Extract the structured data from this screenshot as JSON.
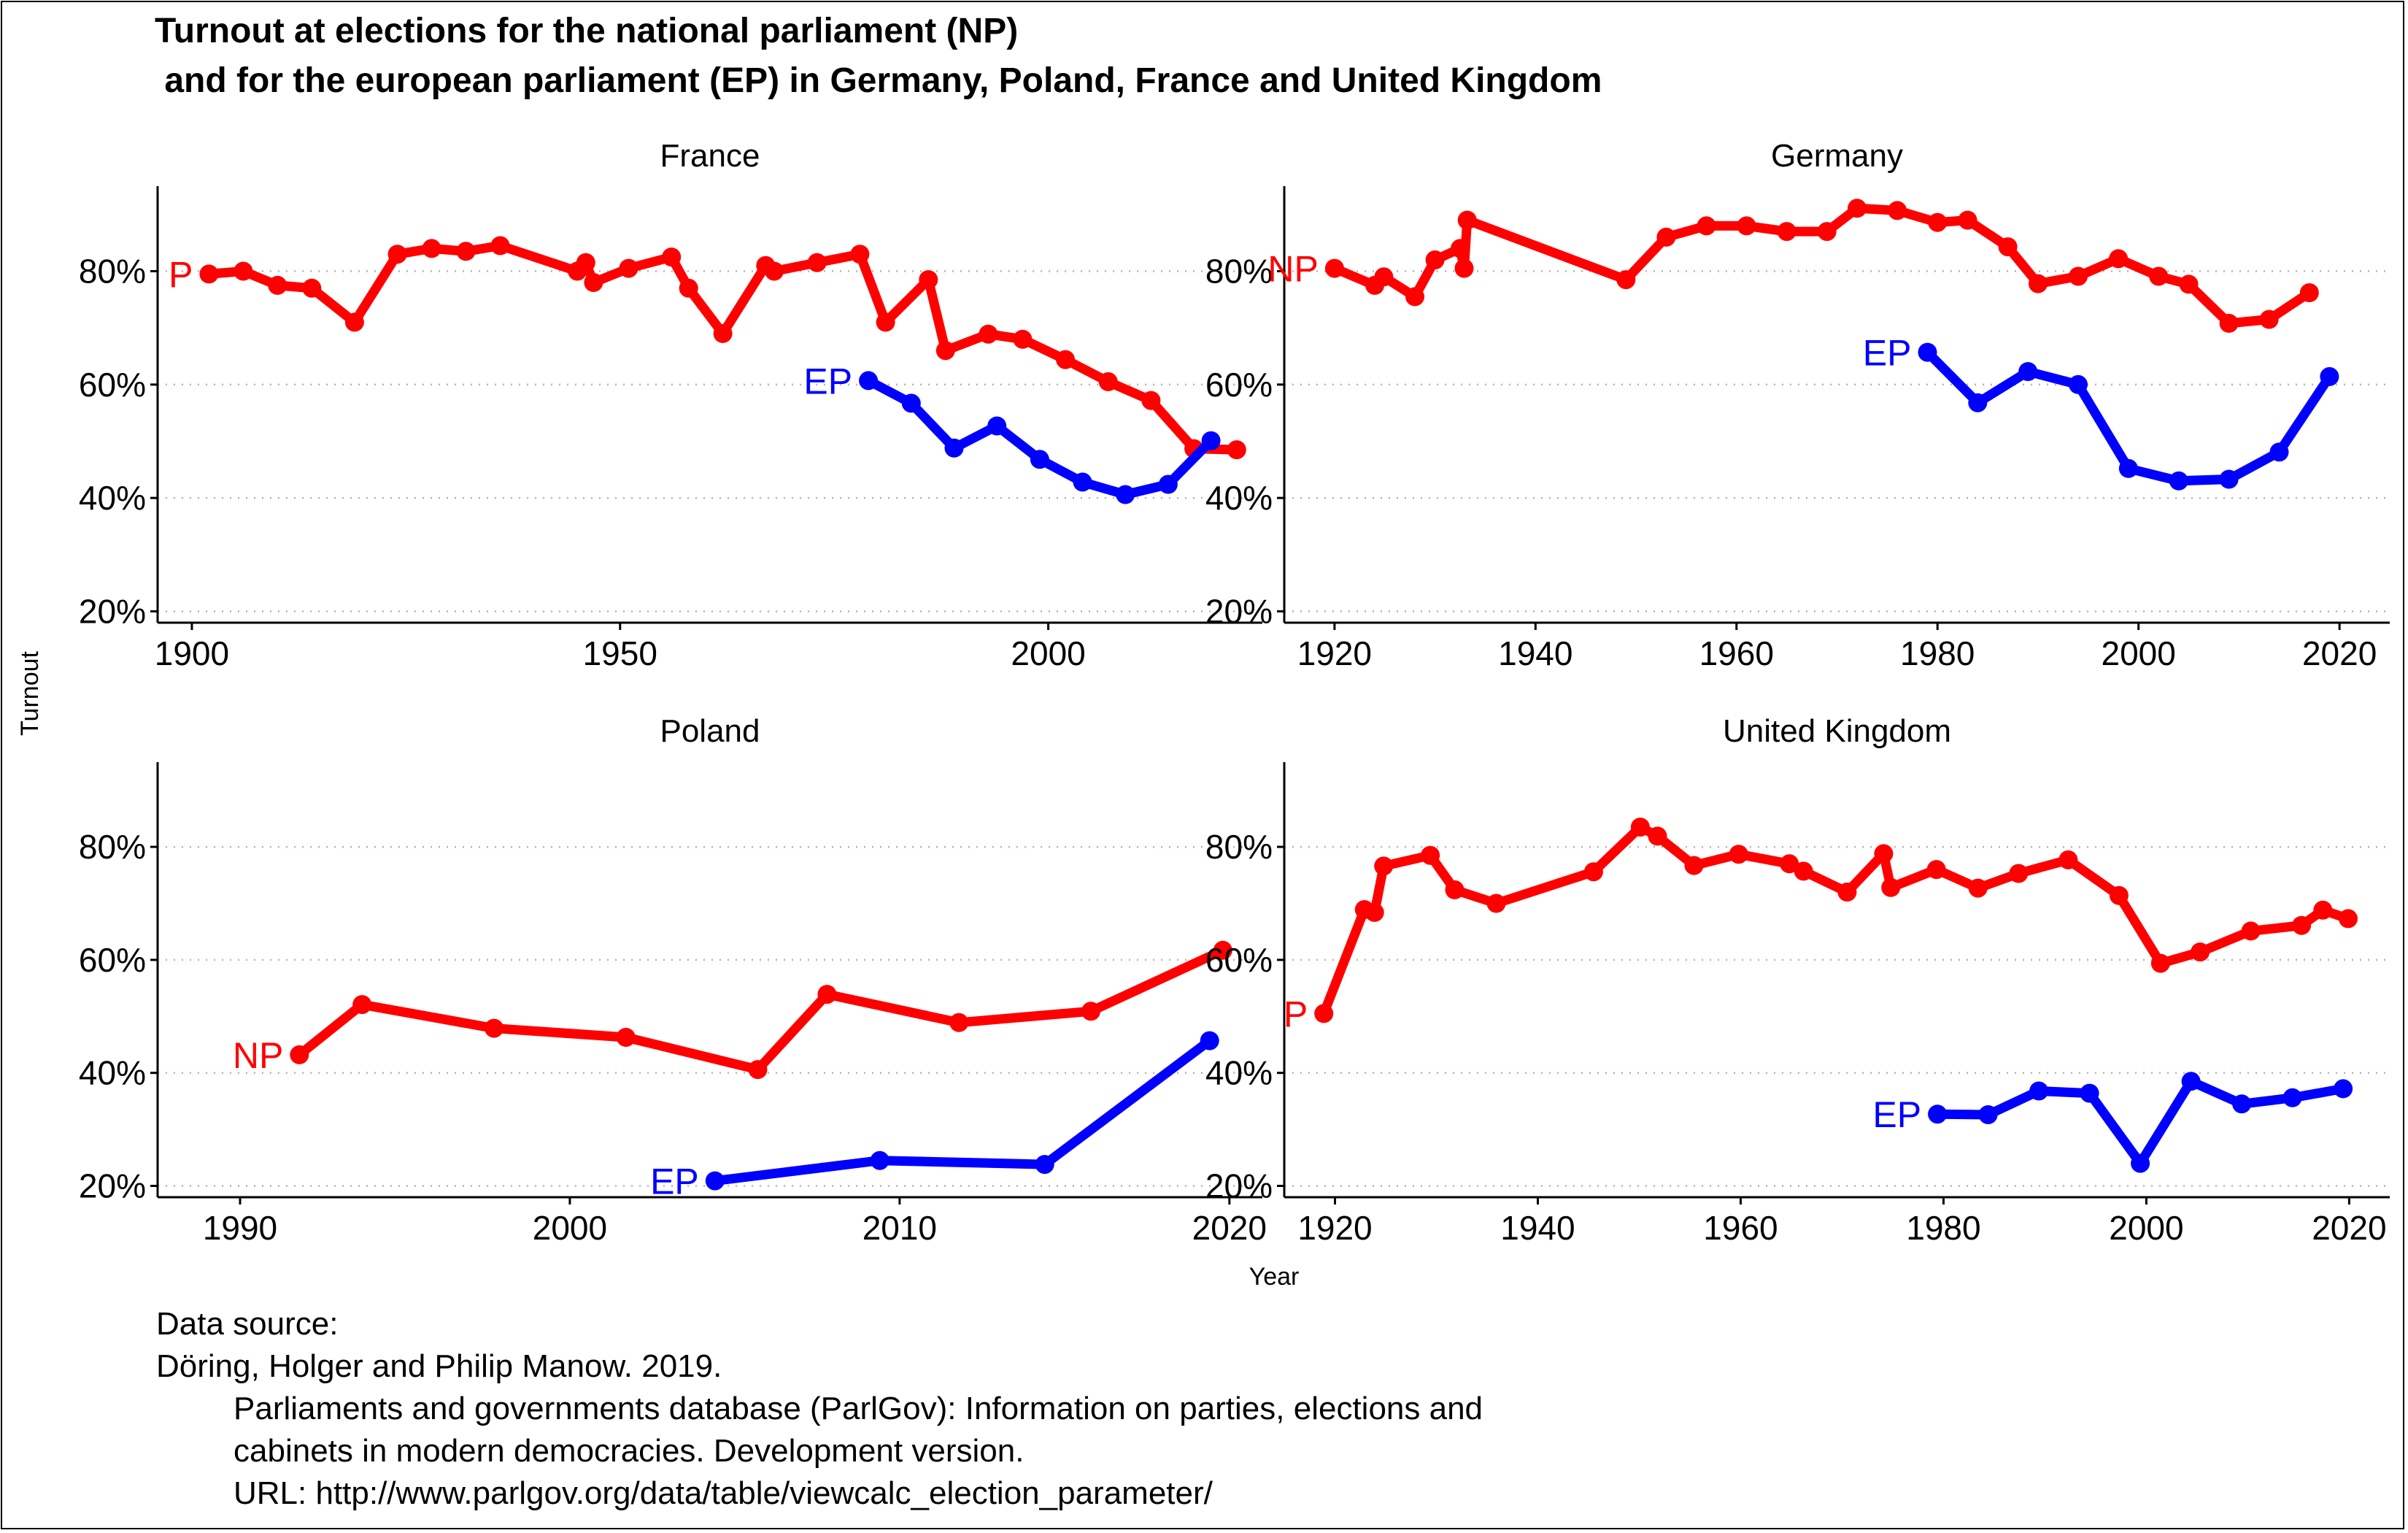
{
  "title_line1": "Turnout at elections for the national parliament (NP)",
  "title_line2": " and for the european parliament (EP) in Germany, Poland, France and United Kingdom",
  "y_axis_title": "Turnout",
  "x_axis_title": "Year",
  "caption_lines": [
    "Data source:",
    "Döring, Holger and Philip Manow. 2019.",
    "Parliaments and governments database (ParlGov): Information on parties, elections and",
    "cabinets in modern democracies. Development version.",
    "URL: http://www.parlgov.org/data/table/viewcalc_election_parameter/"
  ],
  "colors": {
    "NP": "#ff0000",
    "EP": "#0000ff",
    "grid": "#b3b3b3"
  },
  "chart_data": [
    {
      "type": "line",
      "panel": "France",
      "xlim": [
        1896,
        2025
      ],
      "ylim": [
        18,
        95
      ],
      "xticks": [
        1900,
        1950,
        2000
      ],
      "yticks": [
        20,
        40,
        60,
        80
      ],
      "ytick_labels": [
        "20%",
        "40%",
        "60%",
        "80%"
      ],
      "grid": "horizontal dotted",
      "series": [
        {
          "name": "NP",
          "label": "P",
          "label_at": "start",
          "x": [
            1902,
            1906,
            1910,
            1914,
            1919,
            1924,
            1928,
            1932,
            1936,
            1945,
            1946,
            1946.9,
            1951,
            1956,
            1958,
            1962,
            1967,
            1968,
            1973,
            1978,
            1981,
            1986,
            1988,
            1993,
            1997,
            2002,
            2007,
            2012,
            2017,
            2022
          ],
          "y": [
            79.5,
            80,
            77.5,
            77,
            71,
            83,
            84,
            83.5,
            84.5,
            80,
            81.5,
            78,
            80.5,
            82.5,
            77,
            69,
            81,
            80,
            81.5,
            83,
            71,
            78.5,
            66,
            68.9,
            68,
            64.4,
            60.5,
            57.2,
            48.7,
            48.5
          ]
        },
        {
          "name": "EP",
          "label": "EP",
          "label_at": "start",
          "x": [
            1979,
            1984,
            1989,
            1994,
            1999,
            2004,
            2009,
            2014,
            2019
          ],
          "y": [
            60.7,
            56.7,
            48.8,
            52.7,
            46.8,
            42.8,
            40.6,
            42.4,
            50.1
          ]
        }
      ]
    },
    {
      "type": "line",
      "panel": "Germany",
      "xlim": [
        1915,
        2025
      ],
      "ylim": [
        18,
        95
      ],
      "xticks": [
        1920,
        1940,
        1960,
        1980,
        2000,
        2020
      ],
      "yticks": [
        20,
        40,
        60,
        80
      ],
      "ytick_labels": [
        "20%",
        "40%",
        "60%",
        "80%"
      ],
      "grid": "horizontal dotted",
      "series": [
        {
          "name": "NP",
          "label": "NP",
          "label_at": "start",
          "x": [
            1920,
            1924,
            1924.9,
            1928,
            1930,
            1932.5,
            1932.9,
            1933.2,
            1949,
            1953,
            1957,
            1961,
            1965,
            1969,
            1972,
            1976,
            1980,
            1983,
            1987,
            1990,
            1994,
            1998,
            2002,
            2005,
            2009,
            2013,
            2017
          ],
          "y": [
            80.5,
            77.5,
            79,
            75.5,
            82,
            84,
            80.5,
            89,
            78.5,
            86,
            88,
            88,
            87,
            87,
            91.1,
            90.7,
            88.6,
            89,
            84.3,
            77.8,
            79.1,
            82.2,
            79.1,
            77.7,
            70.8,
            71.5,
            76.2
          ]
        },
        {
          "name": "EP",
          "label": "EP",
          "label_at": "start",
          "x": [
            1979,
            1984,
            1989,
            1994,
            1999,
            2004,
            2009,
            2014,
            2019
          ],
          "y": [
            65.7,
            56.8,
            62.3,
            60,
            45.2,
            43,
            43.3,
            48.1,
            61.4
          ]
        }
      ]
    },
    {
      "type": "line",
      "panel": "Poland",
      "xlim": [
        1987.5,
        2021
      ],
      "ylim": [
        18,
        95
      ],
      "xticks": [
        1990,
        2000,
        2010,
        2020
      ],
      "yticks": [
        20,
        40,
        60,
        80
      ],
      "ytick_labels": [
        "20%",
        "40%",
        "60%",
        "80%"
      ],
      "grid": "horizontal dotted",
      "series": [
        {
          "name": "NP",
          "label": "NP",
          "label_at": "start",
          "x": [
            1991.8,
            1993.7,
            1997.7,
            2001.7,
            2005.7,
            2007.8,
            2011.8,
            2015.8,
            2019.8
          ],
          "y": [
            43.2,
            52.1,
            47.9,
            46.3,
            40.6,
            53.9,
            48.9,
            50.9,
            61.7
          ]
        },
        {
          "name": "EP",
          "label": "EP",
          "label_at": "start",
          "x": [
            2004.4,
            2009.4,
            2014.4,
            2019.4
          ],
          "y": [
            20.9,
            24.5,
            23.8,
            45.7
          ]
        }
      ]
    },
    {
      "type": "line",
      "panel": "United Kingdom",
      "xlim": [
        1915,
        2024
      ],
      "ylim": [
        18,
        95
      ],
      "xticks": [
        1920,
        1940,
        1960,
        1980,
        2000,
        2020
      ],
      "yticks": [
        20,
        40,
        60,
        80
      ],
      "ytick_labels": [
        "20%",
        "40%",
        "60%",
        "80%"
      ],
      "grid": "horizontal dotted",
      "series": [
        {
          "name": "NP",
          "label": "P",
          "label_at": "start",
          "x": [
            1918.9,
            1922.9,
            1923.9,
            1924.8,
            1929.4,
            1931.8,
            1935.9,
            1945.5,
            1950.1,
            1951.8,
            1955.4,
            1959.8,
            1964.8,
            1966.2,
            1970.5,
            1974.1,
            1974.8,
            1979.3,
            1983.4,
            1987.4,
            1992.3,
            1997.3,
            2001.4,
            2005.3,
            2010.3,
            2015.3,
            2017.4,
            2019.9
          ],
          "y": [
            50.5,
            68.9,
            68.4,
            76.6,
            78.5,
            72.4,
            70,
            75.6,
            83.5,
            81.9,
            76.7,
            78.7,
            77,
            75.7,
            72,
            78.8,
            72.8,
            76,
            72.7,
            75.3,
            77.7,
            71.4,
            59.4,
            61.4,
            65.1,
            66.1,
            68.8,
            67.3
          ]
        },
        {
          "name": "EP",
          "label": "EP",
          "label_at": "start",
          "x": [
            1979.4,
            1984.4,
            1989.4,
            1994.4,
            1999.4,
            2004.4,
            2009.4,
            2014.4,
            2019.4
          ],
          "y": [
            32.7,
            32.6,
            36.8,
            36.4,
            24,
            38.5,
            34.5,
            35.6,
            37.2
          ]
        }
      ]
    }
  ]
}
